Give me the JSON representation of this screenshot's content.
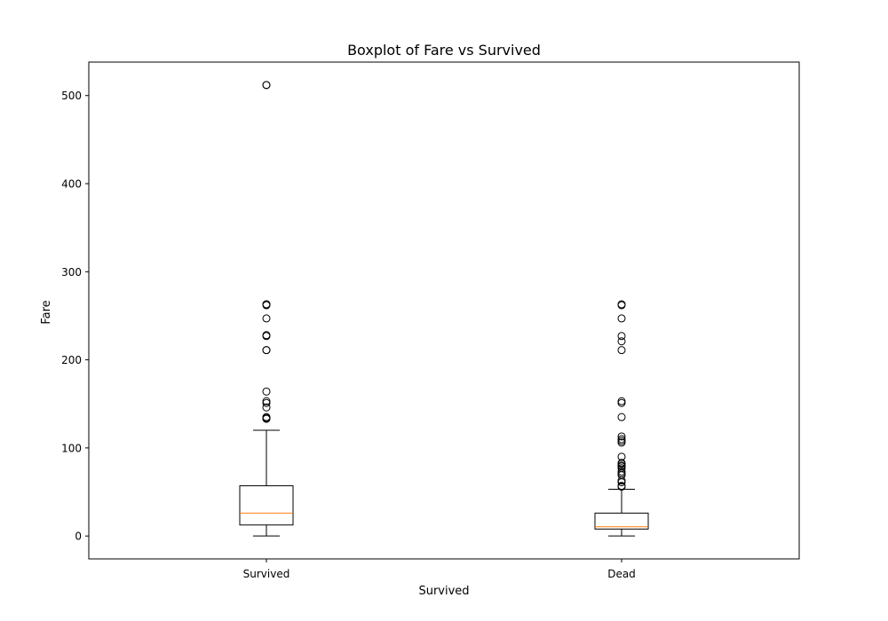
{
  "chart_data": {
    "type": "boxplot",
    "title": "Boxplot of Fare vs Survived",
    "xlabel": "Survived",
    "ylabel": "Fare",
    "categories": [
      "Survived",
      "Dead"
    ],
    "ylim": [
      -26,
      538
    ],
    "yticks": [
      0,
      100,
      200,
      300,
      400,
      500
    ],
    "grid": false,
    "colors": {
      "box": "#000000",
      "median": "#ff7f0e",
      "flier": "#000000"
    },
    "boxes": [
      {
        "category": "Survived",
        "whisker_low": 0,
        "q1": 12.5,
        "median": 26,
        "q3": 57,
        "whisker_high": 120,
        "fliers": [
          133,
          134,
          135,
          146,
          151,
          153,
          164,
          211,
          211,
          227,
          228,
          247,
          262,
          263,
          263,
          512,
          512
        ]
      },
      {
        "category": "Dead",
        "whisker_low": 0,
        "q1": 7.9,
        "median": 10.5,
        "q3": 26,
        "whisker_high": 53,
        "fliers": [
          56,
          57,
          61,
          63,
          69,
          71,
          73,
          77,
          79,
          80,
          82,
          83,
          90,
          106,
          108,
          110,
          113,
          135,
          151,
          153,
          211,
          221,
          227,
          247,
          262,
          263
        ]
      }
    ]
  }
}
